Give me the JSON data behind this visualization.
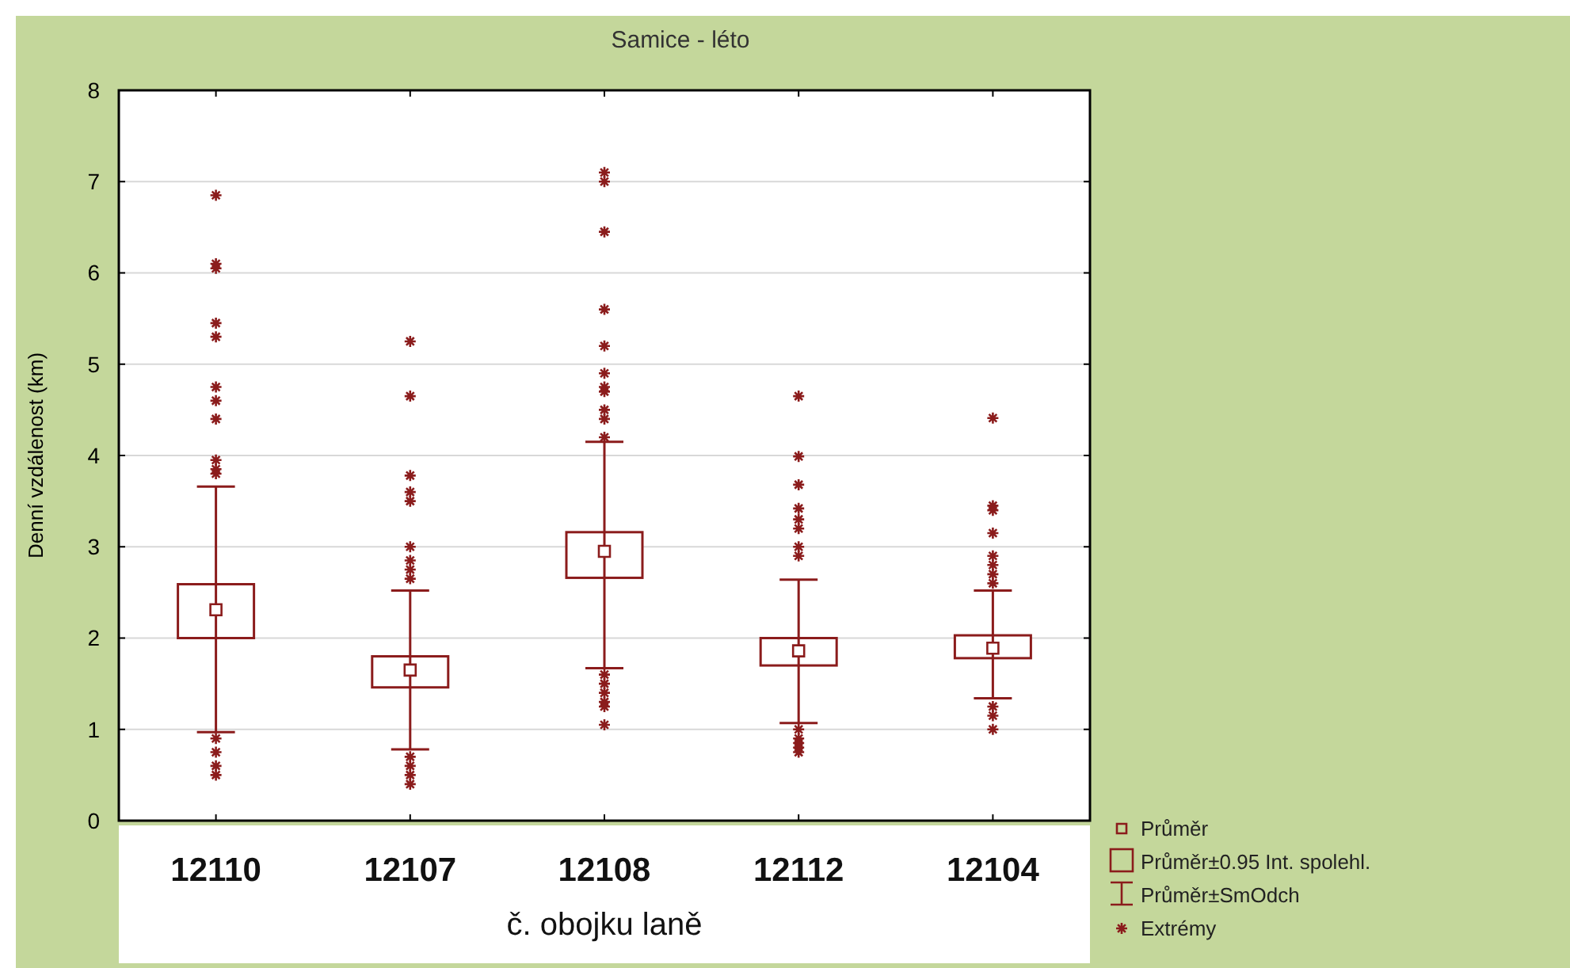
{
  "chart_data": {
    "type": "scatter",
    "title": "Samice - léto",
    "xlabel": "č. obojku laně",
    "ylabel": "Denní vzdálenost (km)",
    "categories": [
      "12110",
      "12107",
      "12108",
      "12112",
      "12104"
    ],
    "annotations": [
      "Průměr±SmOdch"
    ],
    "ylim": [
      0,
      8
    ],
    "yticks": [
      0,
      1,
      2,
      3,
      4,
      5,
      6,
      7,
      8
    ],
    "grid": "y",
    "legend": "bottom right",
    "series": [
      {
        "name": "Průměr",
        "marker": "square",
        "color": "#8b1c1c",
        "values": [
          2.31,
          1.65,
          2.95,
          1.86,
          1.89
        ],
        "errors": [
          [
            0.97,
            3.66
          ],
          [
            0.78,
            2.52
          ],
          [
            1.67,
            4.15
          ],
          [
            1.07,
            2.64
          ],
          [
            1.34,
            2.52
          ]
        ]
      },
      {
        "name": "Průměr±0.95 Int. spolehl.",
        "type": "bar",
        "color": "#8b1c1c",
        "base": [
          2.0,
          1.46,
          2.66,
          1.7,
          1.78
        ],
        "values": [
          0.59,
          0.34,
          0.5,
          0.3,
          0.25
        ]
      },
      {
        "name": "Extrémy",
        "marker": "cross",
        "color": "#8b1c1c",
        "x": [
          "12110",
          "12110",
          "12110",
          "12110",
          "12110",
          "12110",
          "12110",
          "12110",
          "12110",
          "12110",
          "12110",
          "12110",
          "12110",
          "12110",
          "12110",
          "12107",
          "12107",
          "12107",
          "12107",
          "12107",
          "12107",
          "12107",
          "12107",
          "12107",
          "12107",
          "12107",
          "12107",
          "12107",
          "12108",
          "12108",
          "12108",
          "12108",
          "12108",
          "12108",
          "12108",
          "12108",
          "12108",
          "12108",
          "12108",
          "12108",
          "12108",
          "12108",
          "12108",
          "12108",
          "12108",
          "12112",
          "12112",
          "12112",
          "12112",
          "12112",
          "12112",
          "12112",
          "12112",
          "12112",
          "12112",
          "12112",
          "12112",
          "12112",
          "12104",
          "12104",
          "12104",
          "12104",
          "12104",
          "12104",
          "12104",
          "12104",
          "12104",
          "12104",
          "12104"
        ],
        "values": [
          6.85,
          6.1,
          6.05,
          5.45,
          5.3,
          4.75,
          4.6,
          4.4,
          3.95,
          3.85,
          3.8,
          0.9,
          0.75,
          0.6,
          0.5,
          5.25,
          4.65,
          3.78,
          3.6,
          3.5,
          3.0,
          2.85,
          2.75,
          2.65,
          0.7,
          0.6,
          0.5,
          0.4,
          7.1,
          7.0,
          6.45,
          5.6,
          5.2,
          4.9,
          4.75,
          4.7,
          4.5,
          4.4,
          4.2,
          1.6,
          1.5,
          1.4,
          1.3,
          1.25,
          1.05,
          4.65,
          3.99,
          3.68,
          3.42,
          3.3,
          3.2,
          3.0,
          2.9,
          1.0,
          0.9,
          0.85,
          0.8,
          0.75,
          4.41,
          3.45,
          3.4,
          3.15,
          2.9,
          2.8,
          2.7,
          2.6,
          1.25,
          1.15,
          1.0
        ]
      }
    ]
  }
}
